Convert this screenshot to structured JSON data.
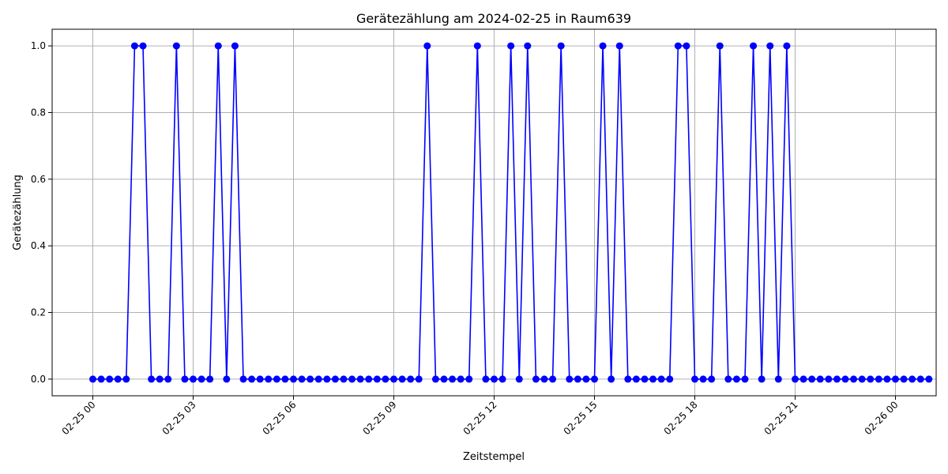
{
  "chart_data": {
    "type": "line",
    "title": "Gerätezählung am 2024-02-25 in Raum639",
    "xlabel": "Zeitstempel",
    "ylabel": "Gerätezählung",
    "x_type": "datetime",
    "x_start": "2024-02-25 00:00",
    "x_step_minutes": 15,
    "xlim": [
      "2024-02-24 22:47",
      "2024-02-26 01:13"
    ],
    "x_ticks": [
      {
        "value": "2024-02-25 00:00",
        "label": "02-25 00"
      },
      {
        "value": "2024-02-25 03:00",
        "label": "02-25 03"
      },
      {
        "value": "2024-02-25 06:00",
        "label": "02-25 06"
      },
      {
        "value": "2024-02-25 09:00",
        "label": "02-25 09"
      },
      {
        "value": "2024-02-25 12:00",
        "label": "02-25 12"
      },
      {
        "value": "2024-02-25 15:00",
        "label": "02-25 15"
      },
      {
        "value": "2024-02-25 18:00",
        "label": "02-25 18"
      },
      {
        "value": "2024-02-25 21:00",
        "label": "02-25 21"
      },
      {
        "value": "2024-02-26 00:00",
        "label": "02-26 00"
      }
    ],
    "ylim": [
      -0.05,
      1.05
    ],
    "y_ticks": [
      0.0,
      0.2,
      0.4,
      0.6,
      0.8,
      1.0
    ],
    "y_tick_labels": [
      "0.0",
      "0.2",
      "0.4",
      "0.6",
      "0.8",
      "1.0"
    ],
    "grid": true,
    "series": [
      {
        "color": "#0000ff",
        "marker": "circle",
        "values": [
          0,
          0,
          0,
          0,
          0,
          1,
          1,
          0,
          0,
          0,
          1,
          0,
          0,
          0,
          0,
          1,
          0,
          1,
          0,
          0,
          0,
          0,
          0,
          0,
          0,
          0,
          0,
          0,
          0,
          0,
          0,
          0,
          0,
          0,
          0,
          0,
          0,
          0,
          0,
          0,
          1,
          0,
          0,
          0,
          0,
          0,
          1,
          0,
          0,
          0,
          1,
          0,
          1,
          0,
          0,
          0,
          1,
          0,
          0,
          0,
          0,
          1,
          0,
          1,
          0,
          0,
          0,
          0,
          0,
          0,
          1,
          1,
          0,
          0,
          0,
          1,
          0,
          0,
          0,
          1,
          0,
          1,
          0,
          1,
          0,
          0,
          0,
          0,
          0,
          0,
          0,
          0,
          0,
          0,
          0,
          0,
          0,
          0,
          0,
          0,
          0
        ]
      }
    ]
  }
}
